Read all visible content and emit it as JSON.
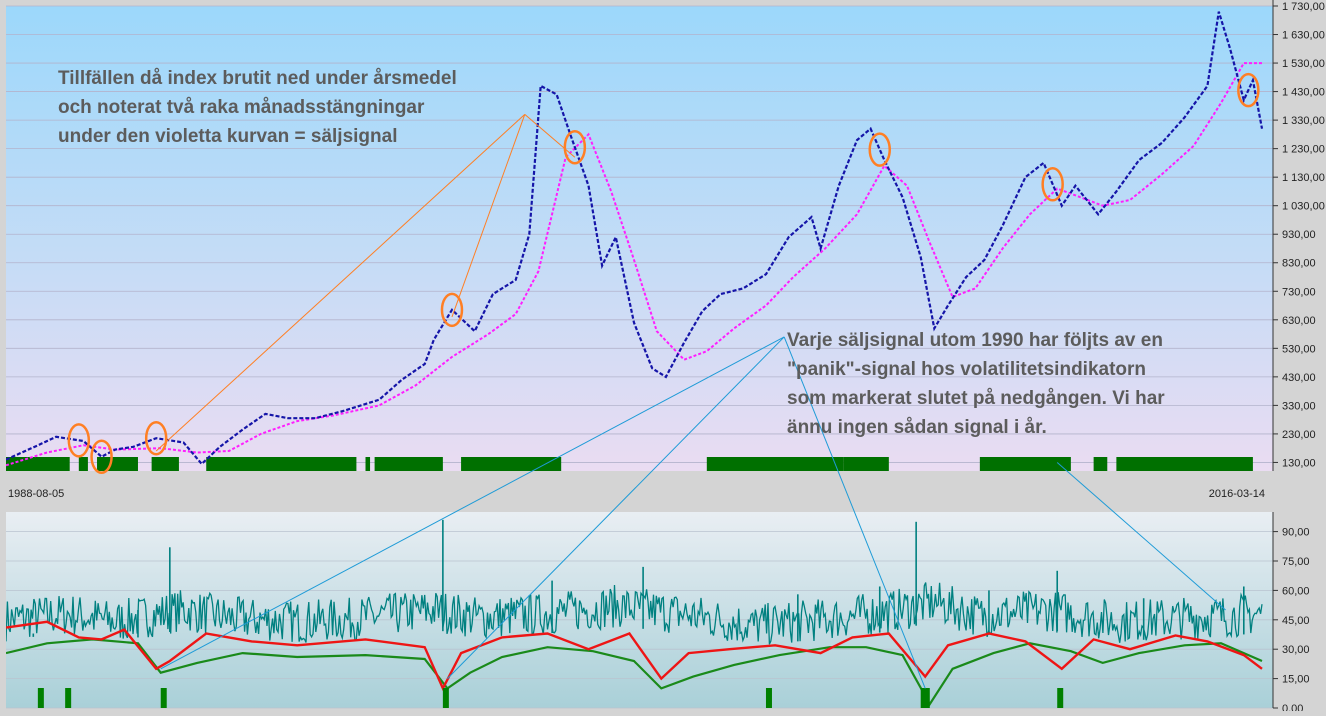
{
  "chart_data": [
    {
      "type": "line",
      "panel": "price",
      "title": "",
      "xlabel": "",
      "ylabel": "",
      "x_start_label": "1988-08-05",
      "x_end_label": "2016-03-14",
      "x_range": [
        1988.6,
        2016.2
      ],
      "ylim": [
        100,
        1730
      ],
      "ytick_labels": [
        "1 730,00",
        "1 630,00",
        "1 530,00",
        "1 430,00",
        "1 330,00",
        "1 230,00",
        "1 130,00",
        "1 030,00",
        "930,00",
        "830,00",
        "730,00",
        "630,00",
        "530,00",
        "430,00",
        "330,00",
        "230,00",
        "130,00"
      ],
      "grid": true,
      "series": [
        {
          "role": "index-weekly",
          "color": "#1515a8",
          "points": [
            [
              1988.6,
              140
            ],
            [
              1989.3,
              190
            ],
            [
              1989.7,
              220
            ],
            [
              1990.3,
              205
            ],
            [
              1990.7,
              150
            ],
            [
              1991.0,
              175
            ],
            [
              1991.4,
              185
            ],
            [
              1991.9,
              215
            ],
            [
              1992.5,
              200
            ],
            [
              1992.9,
              125
            ],
            [
              1993.3,
              185
            ],
            [
              1993.8,
              245
            ],
            [
              1994.3,
              300
            ],
            [
              1994.8,
              285
            ],
            [
              1995.4,
              285
            ],
            [
              1996.0,
              310
            ],
            [
              1996.8,
              350
            ],
            [
              1997.3,
              420
            ],
            [
              1997.8,
              475
            ],
            [
              1998.0,
              560
            ],
            [
              1998.4,
              665
            ],
            [
              1998.9,
              590
            ],
            [
              1999.3,
              720
            ],
            [
              1999.8,
              770
            ],
            [
              2000.1,
              930
            ],
            [
              2000.35,
              1450
            ],
            [
              2000.7,
              1420
            ],
            [
              2001.0,
              1280
            ],
            [
              2001.4,
              1100
            ],
            [
              2001.7,
              820
            ],
            [
              2002.0,
              920
            ],
            [
              2002.4,
              620
            ],
            [
              2002.8,
              460
            ],
            [
              2003.1,
              430
            ],
            [
              2003.5,
              550
            ],
            [
              2003.9,
              660
            ],
            [
              2004.3,
              720
            ],
            [
              2004.8,
              740
            ],
            [
              2005.3,
              790
            ],
            [
              2005.8,
              920
            ],
            [
              2006.3,
              990
            ],
            [
              2006.5,
              880
            ],
            [
              2006.9,
              1100
            ],
            [
              2007.3,
              1260
            ],
            [
              2007.6,
              1300
            ],
            [
              2007.9,
              1190
            ],
            [
              2008.3,
              1060
            ],
            [
              2008.7,
              850
            ],
            [
              2009.0,
              600
            ],
            [
              2009.3,
              680
            ],
            [
              2009.7,
              780
            ],
            [
              2010.1,
              840
            ],
            [
              2010.5,
              960
            ],
            [
              2011.0,
              1130
            ],
            [
              2011.4,
              1180
            ],
            [
              2011.8,
              1030
            ],
            [
              2012.1,
              1100
            ],
            [
              2012.6,
              1000
            ],
            [
              2013.0,
              1080
            ],
            [
              2013.5,
              1190
            ],
            [
              2014.0,
              1250
            ],
            [
              2014.5,
              1340
            ],
            [
              2015.0,
              1450
            ],
            [
              2015.25,
              1710
            ],
            [
              2015.5,
              1580
            ],
            [
              2015.8,
              1400
            ],
            [
              2016.0,
              1470
            ],
            [
              2016.2,
              1300
            ]
          ]
        },
        {
          "role": "yearly-average",
          "color": "#ff1eff",
          "points": [
            [
              1988.6,
              120
            ],
            [
              1989.5,
              165
            ],
            [
              1990.3,
              190
            ],
            [
              1991.0,
              175
            ],
            [
              1992.0,
              180
            ],
            [
              1992.8,
              165
            ],
            [
              1993.5,
              170
            ],
            [
              1994.2,
              230
            ],
            [
              1995.0,
              275
            ],
            [
              1995.8,
              295
            ],
            [
              1996.8,
              330
            ],
            [
              1997.6,
              400
            ],
            [
              1998.4,
              500
            ],
            [
              1999.2,
              580
            ],
            [
              1999.8,
              650
            ],
            [
              2000.3,
              800
            ],
            [
              2000.9,
              1200
            ],
            [
              2001.4,
              1280
            ],
            [
              2001.9,
              1080
            ],
            [
              2002.4,
              840
            ],
            [
              2002.9,
              590
            ],
            [
              2003.5,
              490
            ],
            [
              2004.0,
              520
            ],
            [
              2004.6,
              600
            ],
            [
              2005.3,
              680
            ],
            [
              2005.9,
              780
            ],
            [
              2006.6,
              880
            ],
            [
              2007.3,
              1000
            ],
            [
              2007.9,
              1170
            ],
            [
              2008.4,
              1100
            ],
            [
              2008.9,
              900
            ],
            [
              2009.4,
              710
            ],
            [
              2009.9,
              740
            ],
            [
              2010.5,
              880
            ],
            [
              2011.1,
              1000
            ],
            [
              2011.7,
              1090
            ],
            [
              2012.2,
              1060
            ],
            [
              2012.7,
              1030
            ],
            [
              2013.3,
              1050
            ],
            [
              2014.0,
              1140
            ],
            [
              2014.7,
              1240
            ],
            [
              2015.3,
              1390
            ],
            [
              2015.8,
              1530
            ],
            [
              2016.2,
              1530
            ]
          ]
        }
      ],
      "sell_signals_x": [
        1990.2,
        1990.7,
        1991.9,
        1998.4,
        2001.1,
        2007.8,
        2011.6,
        2015.9
      ],
      "sell_signal_color": "#ff7f24",
      "green_bars": [
        [
          1988.6,
          1990.0
        ],
        [
          1990.2,
          1990.4
        ],
        [
          1990.6,
          1991.5
        ],
        [
          1991.8,
          1992.4
        ],
        [
          1993.0,
          1996.3
        ],
        [
          1996.5,
          1996.6
        ],
        [
          1996.7,
          1998.2
        ],
        [
          1998.6,
          2000.8
        ],
        [
          2004.0,
          2007.0
        ],
        [
          2007.0,
          2008.0
        ],
        [
          2010.0,
          2012.0
        ],
        [
          2012.5,
          2012.8
        ],
        [
          2013.0,
          2016.0
        ]
      ],
      "green_bar_color": "#007000"
    },
    {
      "type": "line",
      "panel": "volatility",
      "title": "",
      "xlabel": "",
      "ylabel": "",
      "ylim": [
        0,
        100
      ],
      "ytick_labels": [
        "90,00",
        "75,00",
        "60,00",
        "45,00",
        "30,00",
        "15,00",
        "0,00"
      ],
      "grid": true,
      "series": [
        {
          "role": "volatility",
          "color": "#008080",
          "points": [
            [
              1988.6,
              45
            ],
            [
              1990.0,
              48
            ],
            [
              1991.0,
              44
            ],
            [
              1992.5,
              50
            ],
            [
              1993.5,
              46
            ],
            [
              1995.0,
              44
            ],
            [
              1996.0,
              45
            ],
            [
              1998.0,
              50
            ],
            [
              1999.0,
              46
            ],
            [
              2000.5,
              48
            ],
            [
              2002.0,
              52
            ],
            [
              2003.5,
              48
            ],
            [
              2005.0,
              42
            ],
            [
              2006.5,
              45
            ],
            [
              2008.0,
              49
            ],
            [
              2009.0,
              54
            ],
            [
              2010.0,
              47
            ],
            [
              2011.5,
              50
            ],
            [
              2013.0,
              44
            ],
            [
              2014.5,
              46
            ],
            [
              2016.2,
              48
            ]
          ],
          "spikes": [
            [
              1989.2,
              38
            ],
            [
              1991.5,
              50
            ],
            [
              1992.2,
              82
            ],
            [
              1998.2,
              96
            ],
            [
              2000.6,
              65
            ],
            [
              2002.6,
              72
            ],
            [
              2006.0,
              58
            ],
            [
              2007.8,
              62
            ],
            [
              2008.6,
              95
            ],
            [
              2010.2,
              60
            ],
            [
              2011.7,
              70
            ],
            [
              2013.6,
              56
            ],
            [
              2015.8,
              62
            ]
          ]
        },
        {
          "role": "short-term-average",
          "color": "#ee1515",
          "points": [
            [
              1988.6,
              41
            ],
            [
              1989.5,
              44
            ],
            [
              1990.2,
              36
            ],
            [
              1990.7,
              35
            ],
            [
              1991.2,
              40
            ],
            [
              1991.9,
              20
            ],
            [
              1992.2,
              24
            ],
            [
              1993.0,
              38
            ],
            [
              1994.0,
              34
            ],
            [
              1995.0,
              32
            ],
            [
              1996.5,
              35
            ],
            [
              1997.8,
              31
            ],
            [
              1998.2,
              10
            ],
            [
              1998.6,
              28
            ],
            [
              1999.5,
              36
            ],
            [
              2000.5,
              38
            ],
            [
              2001.4,
              30
            ],
            [
              2002.3,
              38
            ],
            [
              2003.0,
              15
            ],
            [
              2003.6,
              28
            ],
            [
              2004.5,
              30
            ],
            [
              2005.5,
              32
            ],
            [
              2006.5,
              28
            ],
            [
              2007.2,
              36
            ],
            [
              2008.0,
              38
            ],
            [
              2008.8,
              16
            ],
            [
              2009.3,
              32
            ],
            [
              2010.2,
              38
            ],
            [
              2011.0,
              34
            ],
            [
              2011.8,
              20
            ],
            [
              2012.5,
              35
            ],
            [
              2013.3,
              30
            ],
            [
              2014.3,
              37
            ],
            [
              2015.0,
              34
            ],
            [
              2015.8,
              27
            ],
            [
              2016.2,
              20
            ]
          ]
        },
        {
          "role": "long-term-average",
          "color": "#1a8a1a",
          "points": [
            [
              1988.6,
              28
            ],
            [
              1989.5,
              33
            ],
            [
              1990.5,
              35
            ],
            [
              1991.5,
              33
            ],
            [
              1992.0,
              18
            ],
            [
              1992.8,
              23
            ],
            [
              1993.8,
              28
            ],
            [
              1995.0,
              26
            ],
            [
              1996.5,
              27
            ],
            [
              1997.8,
              25
            ],
            [
              1998.3,
              10
            ],
            [
              1998.8,
              18
            ],
            [
              1999.5,
              26
            ],
            [
              2000.5,
              31
            ],
            [
              2001.5,
              29
            ],
            [
              2002.4,
              24
            ],
            [
              2003.0,
              10
            ],
            [
              2003.7,
              16
            ],
            [
              2004.6,
              22
            ],
            [
              2005.6,
              27
            ],
            [
              2006.7,
              31
            ],
            [
              2007.5,
              31
            ],
            [
              2008.3,
              27
            ],
            [
              2008.9,
              2
            ],
            [
              2009.4,
              20
            ],
            [
              2010.3,
              28
            ],
            [
              2011.1,
              33
            ],
            [
              2012.0,
              29
            ],
            [
              2012.7,
              23
            ],
            [
              2013.5,
              28
            ],
            [
              2014.5,
              32
            ],
            [
              2015.3,
              33
            ],
            [
              2016.2,
              24
            ]
          ]
        }
      ],
      "panic_signals_x": [
        [
          1989.3,
          1989.4
        ],
        [
          1989.9,
          1990.0
        ],
        [
          1992.0,
          1992.1
        ],
        [
          1998.2,
          1998.3
        ],
        [
          2005.3,
          2005.4
        ],
        [
          2008.7,
          2008.9
        ],
        [
          2011.7,
          2011.8
        ]
      ],
      "panic_signal_color": "#008000"
    }
  ],
  "annotations": {
    "sell_text": [
      "Tillfällen då index brutit ned under årsmedel",
      "och noterat två raka månadsstängningar",
      "under den violetta kurvan = säljsignal"
    ],
    "sell_text_color": "#5c5c5c",
    "sell_pointer_color": "#ff7f24",
    "sell_pointer_origin": {
      "x": 2000.0,
      "y": 1350
    },
    "sell_pointer_targets": [
      [
        1991.9,
        170
      ],
      [
        1998.4,
        640
      ],
      [
        2001.1,
        1200
      ]
    ],
    "panic_text": [
      "Varje säljsignal utom 1990 har följts av en",
      "\"panik\"-signal hos volatilitetsindikatorn",
      "som markerat slutet på nedgången. Vi har",
      "ännu ingen sådan signal i år."
    ],
    "panic_text_color": "#5c5c5c",
    "panic_pointer_color": "#1e9bd7",
    "panic_pointer_origin": {
      "x": 2005.7,
      "y": 570
    },
    "panic_pointer_targets": [
      [
        1992.0,
        20
      ],
      [
        1998.3,
        15
      ],
      [
        2008.8,
        10
      ]
    ],
    "panic_open_pointer": {
      "from": {
        "x": 2011.7,
        "y": 130
      },
      "to": {
        "x": 2015.4,
        "y": 50
      }
    }
  }
}
